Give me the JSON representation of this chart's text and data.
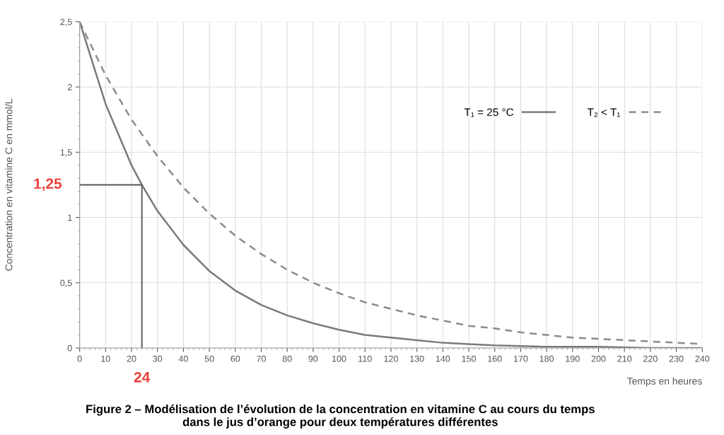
{
  "chart_data": {
    "type": "line",
    "title": "Figure 2 – Modélisation de l’évolution de la concentration en vitamine C au cours du temps\ndans le jus d’orange pour deux températures différentes",
    "xlabel": "Temps en heures",
    "ylabel": "Concentration en vitamine C en mmol/L",
    "series": [
      {
        "name": "T₁ = 25 °C",
        "color": "#7a7a7a",
        "line_style": "solid",
        "x": [
          0,
          10,
          20,
          24,
          30,
          40,
          50,
          60,
          70,
          80,
          90,
          100,
          110,
          120,
          130,
          140,
          150,
          160,
          180,
          200,
          220,
          240
        ],
        "values": [
          2.5,
          1.87,
          1.4,
          1.25,
          1.05,
          0.79,
          0.59,
          0.44,
          0.33,
          0.25,
          0.19,
          0.14,
          0.1,
          0.08,
          0.06,
          0.04,
          0.03,
          0.02,
          0.01,
          0.01,
          0.0,
          0.0
        ]
      },
      {
        "name": "T₂ < T₁",
        "color": "#8c8c8c",
        "line_style": "dashed",
        "x": [
          0,
          10,
          20,
          30,
          40,
          50,
          60,
          70,
          80,
          90,
          100,
          110,
          120,
          130,
          140,
          150,
          160,
          170,
          180,
          190,
          200,
          210,
          220,
          230,
          240
        ],
        "values": [
          2.5,
          2.09,
          1.75,
          1.47,
          1.23,
          1.03,
          0.86,
          0.72,
          0.6,
          0.5,
          0.42,
          0.35,
          0.3,
          0.25,
          0.21,
          0.17,
          0.15,
          0.12,
          0.1,
          0.08,
          0.07,
          0.06,
          0.05,
          0.04,
          0.03
        ]
      }
    ],
    "xlim": [
      0,
      240
    ],
    "xticks": [
      0,
      10,
      20,
      30,
      40,
      50,
      60,
      70,
      80,
      90,
      100,
      110,
      120,
      130,
      140,
      150,
      160,
      170,
      180,
      190,
      200,
      210,
      220,
      230,
      240
    ],
    "ylim": [
      0,
      2.5
    ],
    "yticks": [
      {
        "value": 0,
        "label": "0"
      },
      {
        "value": 0.5,
        "label": "0,5"
      },
      {
        "value": 1,
        "label": "1"
      },
      {
        "value": 1.5,
        "label": "1,5"
      },
      {
        "value": 2,
        "label": "2"
      },
      {
        "value": 2.5,
        "label": "2,5"
      }
    ],
    "ref_lines": [
      {
        "axis": "y",
        "value": 1.25,
        "label": "1,25",
        "color": "#666666"
      },
      {
        "axis": "x",
        "value": 24,
        "label": "24",
        "color": "#666666"
      }
    ],
    "grid": true,
    "legend": "right",
    "marker": "none"
  }
}
